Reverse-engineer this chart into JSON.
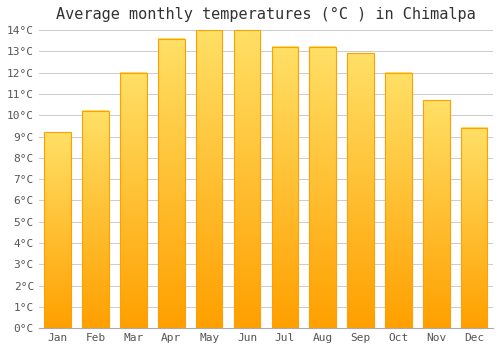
{
  "title": "Average monthly temperatures (°C ) in Chimalpa",
  "months": [
    "Jan",
    "Feb",
    "Mar",
    "Apr",
    "May",
    "Jun",
    "Jul",
    "Aug",
    "Sep",
    "Oct",
    "Nov",
    "Dec"
  ],
  "values": [
    9.2,
    10.2,
    12.0,
    13.6,
    14.0,
    14.0,
    13.2,
    13.2,
    12.9,
    12.0,
    10.7,
    9.4
  ],
  "bar_color_bottom": "#FFA000",
  "bar_color_top": "#FFD966",
  "background_color": "#FFFFFF",
  "grid_color": "#CCCCCC",
  "ylim": [
    0,
    14
  ],
  "ytick_max": 14,
  "ytick_step": 1,
  "title_fontsize": 11,
  "tick_fontsize": 8,
  "font_family": "monospace"
}
